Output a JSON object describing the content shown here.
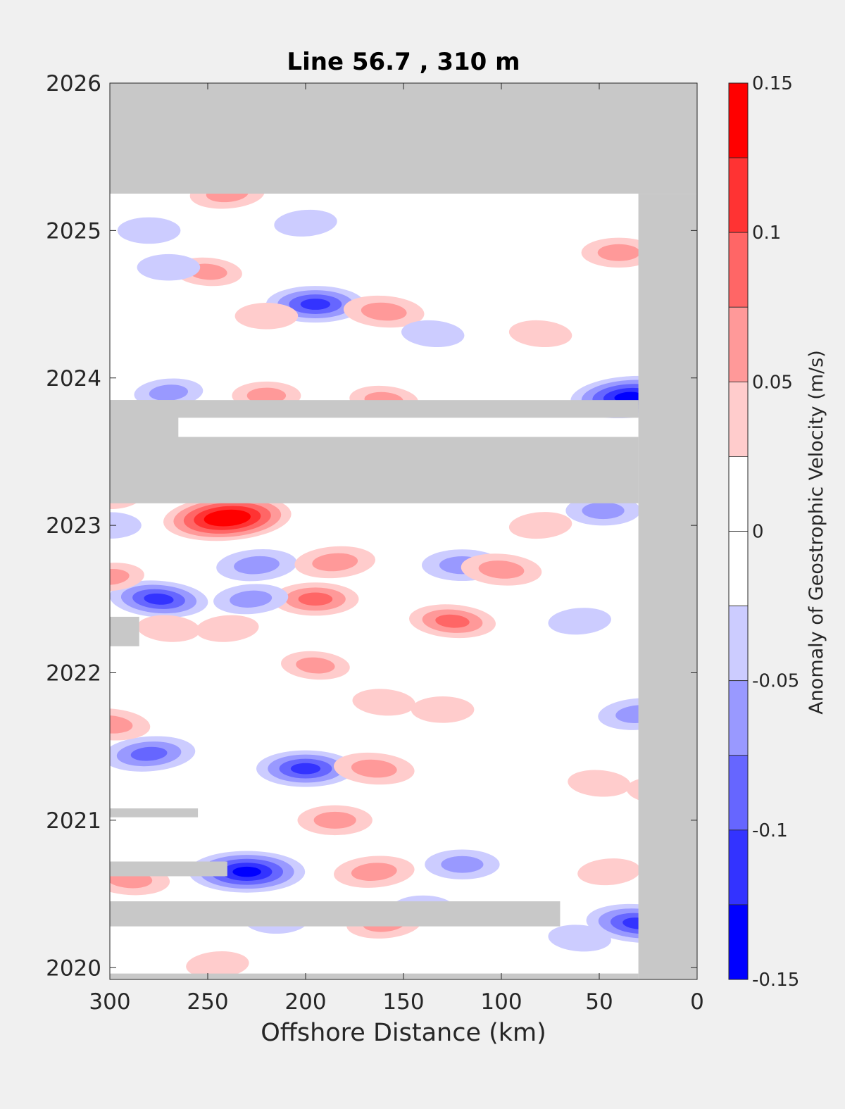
{
  "chart_data": {
    "type": "heatmap",
    "title": "Line 56.7 , 310 m",
    "xlabel": "Offshore Distance (km)",
    "ylabel": "",
    "x_ticks": [
      "300",
      "250",
      "200",
      "150",
      "100",
      "50",
      "0"
    ],
    "y_ticks": [
      "2026",
      "2025",
      "2024",
      "2023",
      "2022",
      "2021",
      "2020"
    ],
    "xlim": [
      300,
      0
    ],
    "ylim": [
      2019.92,
      2026
    ],
    "no_data_color": "#c8c8c8",
    "colorbar": {
      "label": "Anomaly of Geostrophic Velocity (m/s)",
      "ticks": [
        "0.15",
        "0.1",
        "0.05",
        "0",
        "-0.05",
        "-0.1",
        "-0.15"
      ],
      "range": [
        -0.15,
        0.15
      ],
      "levels": [
        {
          "min": 0.125,
          "max": 0.15,
          "color": "#ff0000"
        },
        {
          "min": 0.1,
          "max": 0.125,
          "color": "#ff3333"
        },
        {
          "min": 0.075,
          "max": 0.1,
          "color": "#ff6666"
        },
        {
          "min": 0.05,
          "max": 0.075,
          "color": "#ff9999"
        },
        {
          "min": 0.025,
          "max": 0.05,
          "color": "#ffcccc"
        },
        {
          "min": 0.0,
          "max": 0.025,
          "color": "#ffffff"
        },
        {
          "min": -0.025,
          "max": 0.0,
          "color": "#ffffff"
        },
        {
          "min": -0.05,
          "max": -0.025,
          "color": "#ccccff"
        },
        {
          "min": -0.075,
          "max": -0.05,
          "color": "#9999ff"
        },
        {
          "min": -0.1,
          "max": -0.075,
          "color": "#6666ff"
        },
        {
          "min": -0.125,
          "max": -0.1,
          "color": "#3333ff"
        },
        {
          "min": -0.15,
          "max": -0.125,
          "color": "#0000ff"
        }
      ]
    },
    "no_data_regions": [
      {
        "x": [
          300,
          0
        ],
        "y": [
          2025.25,
          2026
        ]
      },
      {
        "x": [
          30,
          0
        ],
        "y": [
          2019.92,
          2025.25
        ]
      },
      {
        "x": [
          300,
          30
        ],
        "y": [
          2023.15,
          2023.6
        ]
      },
      {
        "x": [
          300,
          30
        ],
        "y": [
          2023.73,
          2023.85
        ]
      },
      {
        "x": [
          300,
          265
        ],
        "y": [
          2023.6,
          2023.85
        ]
      },
      {
        "x": [
          300,
          285
        ],
        "y": [
          2022.18,
          2022.38
        ]
      },
      {
        "x": [
          300,
          255
        ],
        "y": [
          2021.02,
          2021.08
        ]
      },
      {
        "x": [
          300,
          240
        ],
        "y": [
          2020.62,
          2020.72
        ]
      },
      {
        "x": [
          300,
          70
        ],
        "y": [
          2020.28,
          2020.45
        ]
      },
      {
        "x": [
          300,
          30
        ],
        "y": [
          2019.92,
          2019.96
        ]
      }
    ],
    "anomalies": [
      {
        "x": 240,
        "y": 2023.05,
        "v": 0.15
      },
      {
        "x": 195,
        "y": 2024.5,
        "v": -0.1
      },
      {
        "x": 160,
        "y": 2024.45,
        "v": 0.07
      },
      {
        "x": 35,
        "y": 2023.87,
        "v": -0.13
      },
      {
        "x": 48,
        "y": 2023.1,
        "v": -0.06
      },
      {
        "x": 275,
        "y": 2022.5,
        "v": -0.1
      },
      {
        "x": 225,
        "y": 2022.73,
        "v": -0.07
      },
      {
        "x": 195,
        "y": 2022.5,
        "v": 0.08
      },
      {
        "x": 125,
        "y": 2022.35,
        "v": 0.08
      },
      {
        "x": 185,
        "y": 2022.75,
        "v": 0.07
      },
      {
        "x": 120,
        "y": 2022.73,
        "v": -0.07
      },
      {
        "x": 100,
        "y": 2022.7,
        "v": 0.07
      },
      {
        "x": 228,
        "y": 2022.5,
        "v": -0.06
      },
      {
        "x": 200,
        "y": 2021.35,
        "v": -0.1
      },
      {
        "x": 165,
        "y": 2021.35,
        "v": 0.07
      },
      {
        "x": 280,
        "y": 2021.45,
        "v": -0.09
      },
      {
        "x": 230,
        "y": 2020.65,
        "v": -0.13
      },
      {
        "x": 290,
        "y": 2020.6,
        "v": 0.07
      },
      {
        "x": 165,
        "y": 2020.65,
        "v": 0.07
      },
      {
        "x": 120,
        "y": 2020.7,
        "v": -0.06
      },
      {
        "x": 30,
        "y": 2020.3,
        "v": -0.11
      },
      {
        "x": 160,
        "y": 2020.3,
        "v": 0.06
      },
      {
        "x": 185,
        "y": 2021.0,
        "v": 0.06
      },
      {
        "x": 300,
        "y": 2021.65,
        "v": 0.07
      },
      {
        "x": 30,
        "y": 2021.72,
        "v": -0.07
      },
      {
        "x": 40,
        "y": 2024.85,
        "v": 0.06
      },
      {
        "x": 250,
        "y": 2024.72,
        "v": 0.05
      },
      {
        "x": 270,
        "y": 2023.9,
        "v": -0.05
      },
      {
        "x": 220,
        "y": 2023.88,
        "v": 0.05
      },
      {
        "x": 160,
        "y": 2023.85,
        "v": 0.05
      },
      {
        "x": 240,
        "y": 2025.25,
        "v": 0.06
      },
      {
        "x": 220,
        "y": 2024.42,
        "v": 0.04
      },
      {
        "x": 195,
        "y": 2022.05,
        "v": 0.05
      },
      {
        "x": 240,
        "y": 2022.3,
        "v": 0.04
      },
      {
        "x": 270,
        "y": 2024.75,
        "v": -0.04
      },
      {
        "x": 80,
        "y": 2024.3,
        "v": 0.04
      },
      {
        "x": 200,
        "y": 2025.05,
        "v": -0.04
      },
      {
        "x": 280,
        "y": 2025.0,
        "v": -0.04
      },
      {
        "x": 50,
        "y": 2021.25,
        "v": 0.04
      },
      {
        "x": 80,
        "y": 2023.0,
        "v": 0.04
      },
      {
        "x": 300,
        "y": 2023.0,
        "v": -0.04
      },
      {
        "x": 135,
        "y": 2024.3,
        "v": -0.04
      },
      {
        "x": 300,
        "y": 2022.65,
        "v": 0.05
      },
      {
        "x": 215,
        "y": 2020.32,
        "v": -0.04
      },
      {
        "x": 60,
        "y": 2020.2,
        "v": -0.04
      },
      {
        "x": 45,
        "y": 2020.65,
        "v": 0.04
      },
      {
        "x": 140,
        "y": 2020.4,
        "v": -0.04
      },
      {
        "x": 270,
        "y": 2022.3,
        "v": 0.04
      },
      {
        "x": 245,
        "y": 2020.02,
        "v": 0.04
      },
      {
        "x": 300,
        "y": 2023.2,
        "v": 0.04
      },
      {
        "x": 160,
        "y": 2021.8,
        "v": 0.04
      },
      {
        "x": 60,
        "y": 2022.35,
        "v": -0.04
      },
      {
        "x": 130,
        "y": 2021.75,
        "v": 0.04
      },
      {
        "x": 20,
        "y": 2021.2,
        "v": 0.04
      }
    ]
  }
}
